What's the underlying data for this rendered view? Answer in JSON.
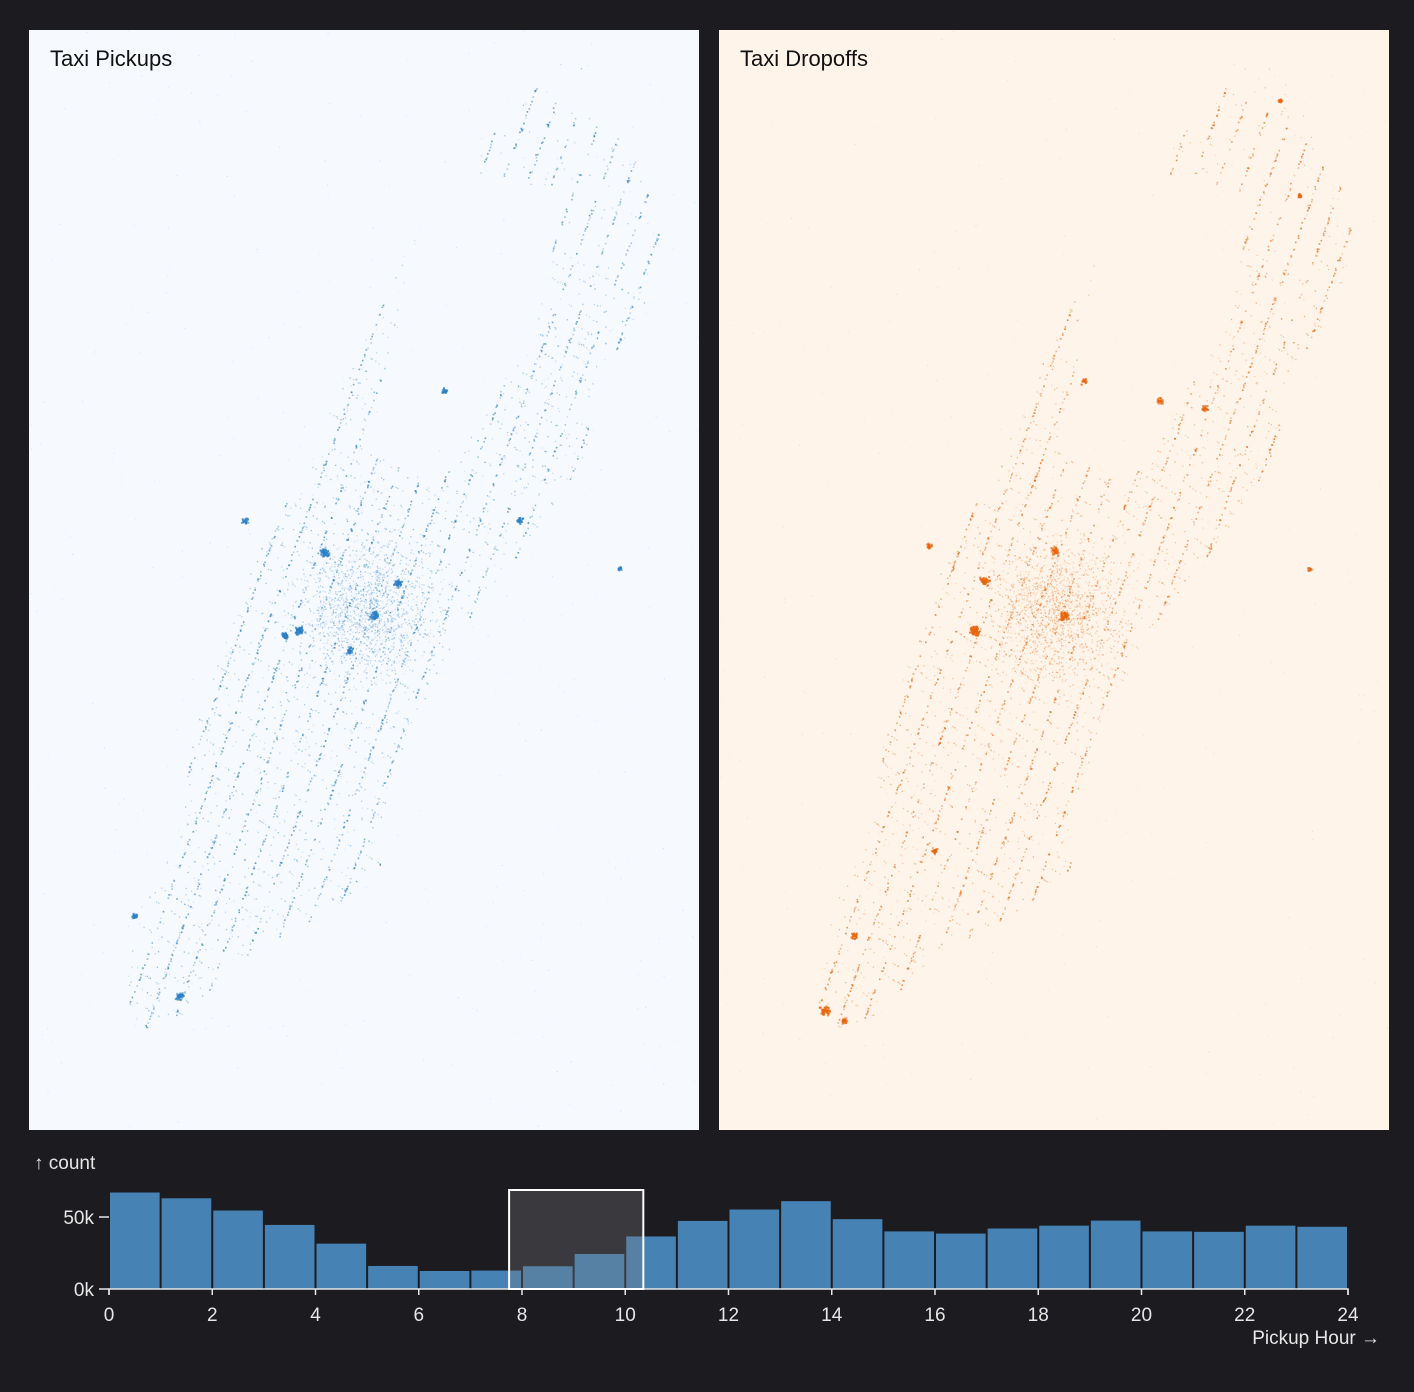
{
  "panels": {
    "pickups": {
      "title": "Taxi Pickups",
      "color": "#2a7fc6",
      "background": "#f6f9fe"
    },
    "dropoffs": {
      "title": "Taxi Dropoffs",
      "color": "#e8650c",
      "background": "#fff4e9"
    }
  },
  "page": {
    "background": "#1c1b20"
  },
  "chart_data": {
    "type": "bar",
    "x_label": "Pickup Hour →",
    "y_label": "↑ count",
    "x_ticks": [
      0,
      2,
      4,
      6,
      8,
      10,
      12,
      14,
      16,
      18,
      20,
      22,
      24
    ],
    "x_tick_labels": [
      "0",
      "2",
      "4",
      "6",
      "8",
      "10",
      "12",
      "14",
      "16",
      "18",
      "20",
      "22",
      "24"
    ],
    "y_ticks": [
      0,
      50000
    ],
    "y_tick_labels": [
      "0k",
      "50k"
    ],
    "xlim": [
      0,
      24
    ],
    "bar_color": "#4682b4",
    "bins": [
      {
        "hour": 0,
        "count": 67000
      },
      {
        "hour": 1,
        "count": 63000
      },
      {
        "hour": 2,
        "count": 54500
      },
      {
        "hour": 3,
        "count": 44500
      },
      {
        "hour": 4,
        "count": 31500
      },
      {
        "hour": 5,
        "count": 16000
      },
      {
        "hour": 6,
        "count": 12500
      },
      {
        "hour": 7,
        "count": 12800
      },
      {
        "hour": 8,
        "count": 15800
      },
      {
        "hour": 9,
        "count": 24300
      },
      {
        "hour": 10,
        "count": 36500
      },
      {
        "hour": 11,
        "count": 47300
      },
      {
        "hour": 12,
        "count": 55200
      },
      {
        "hour": 13,
        "count": 61000
      },
      {
        "hour": 14,
        "count": 48500
      },
      {
        "hour": 15,
        "count": 40000
      },
      {
        "hour": 16,
        "count": 38500
      },
      {
        "hour": 17,
        "count": 42000
      },
      {
        "hour": 18,
        "count": 44000
      },
      {
        "hour": 19,
        "count": 47500
      },
      {
        "hour": 20,
        "count": 40000
      },
      {
        "hour": 21,
        "count": 39700
      },
      {
        "hour": 22,
        "count": 44000
      },
      {
        "hour": 23,
        "count": 43200
      }
    ],
    "brush": [
      7.75,
      10.35
    ]
  }
}
